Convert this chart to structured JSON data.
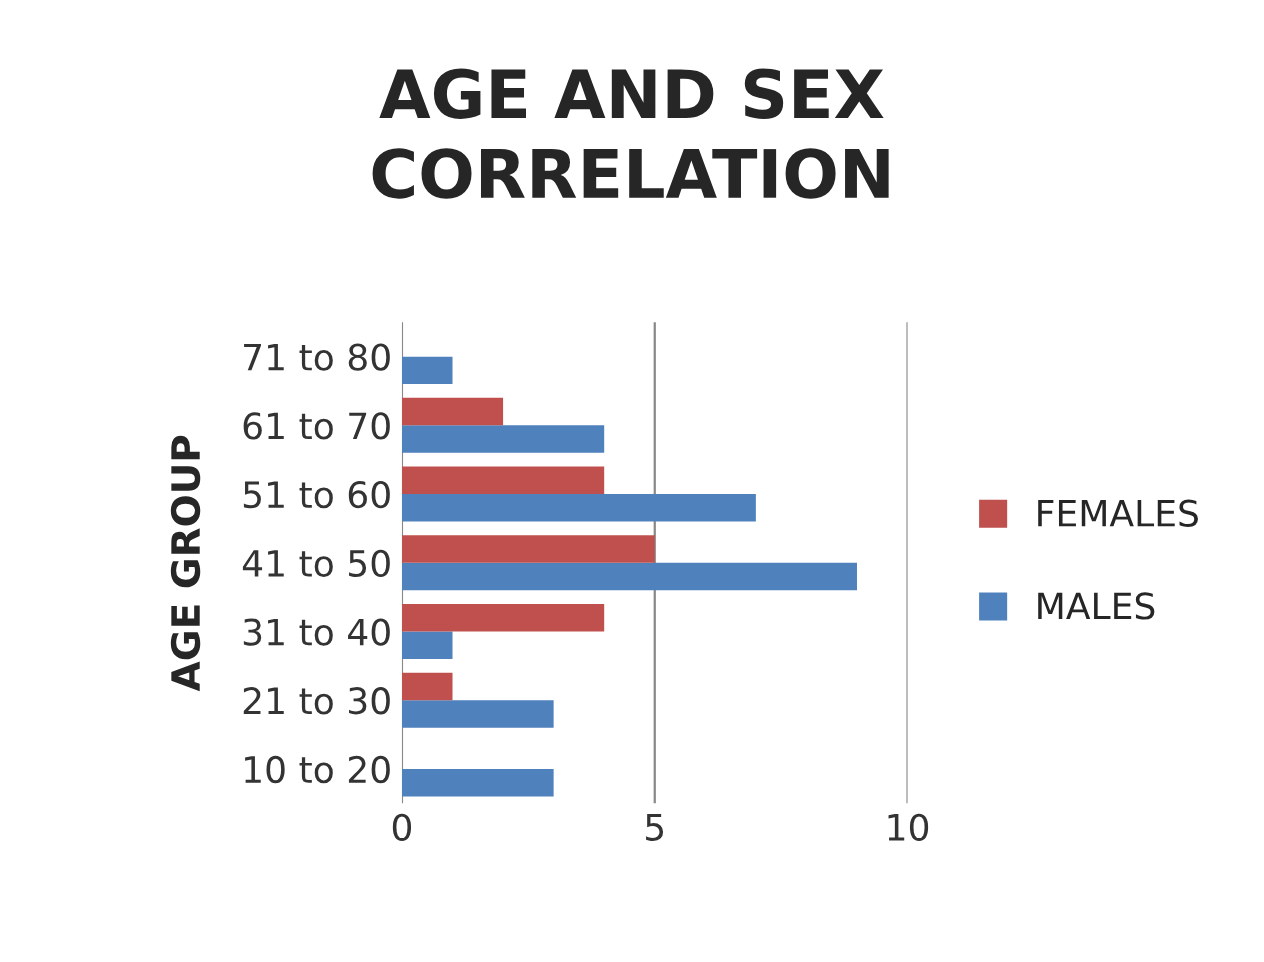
{
  "chart_data": {
    "type": "bar",
    "orientation": "horizontal",
    "title": "AGE AND SEX\nCORRELATION",
    "ylabel": "AGE GROUP",
    "categories": [
      "71 to 80",
      "61 to 70",
      "51 to 60",
      "41 to 50",
      "31 to 40",
      "21 to 30",
      "10 to 20"
    ],
    "series": [
      {
        "name": "MALES",
        "color": "#4f81bd",
        "values": [
          1,
          4,
          7,
          9,
          1,
          3,
          3
        ]
      },
      {
        "name": "FEMALES",
        "color": "#c0504d",
        "values": [
          0,
          2,
          4,
          5,
          4,
          1,
          0
        ]
      }
    ],
    "xlim": [
      0,
      10
    ],
    "xticks": [
      0,
      5,
      10
    ],
    "grid": "x",
    "legend": "right"
  }
}
